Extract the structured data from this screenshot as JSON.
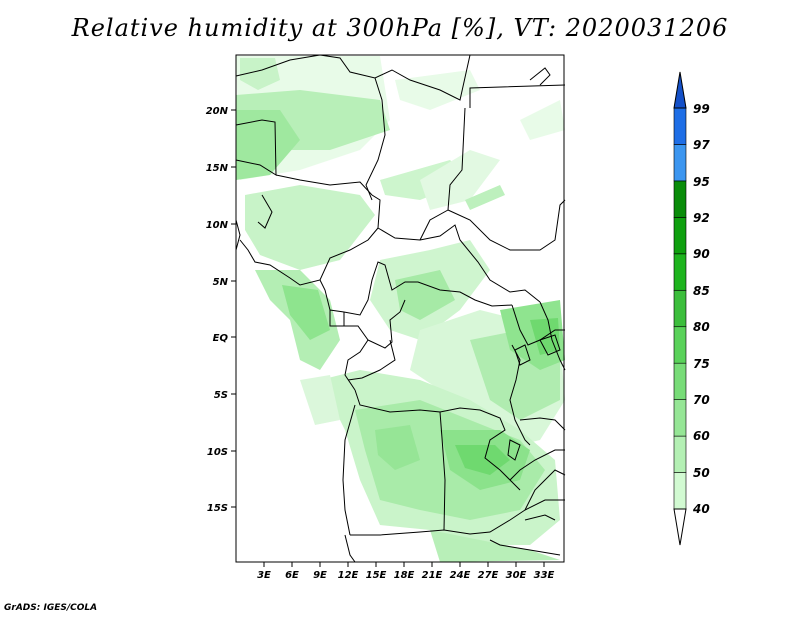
{
  "title": "Relative humidity at 300hPa [%], VT: 2020031206",
  "footer": "GrADS: IGES/COLA",
  "map": {
    "lat_labels": [
      "20N",
      "15N",
      "10N",
      "5N",
      "EQ",
      "5S",
      "10S",
      "15S"
    ],
    "lon_labels": [
      "3E",
      "6E",
      "9E",
      "12E",
      "15E",
      "18E",
      "21E",
      "24E",
      "27E",
      "30E",
      "33E"
    ]
  },
  "colorbar": {
    "levels": [
      "40",
      "50",
      "60",
      "70",
      "75",
      "80",
      "85",
      "90",
      "92",
      "95",
      "97",
      "99"
    ],
    "colors": [
      "#f0fff0",
      "#d2fad2",
      "#b4f0b4",
      "#96e696",
      "#78dc78",
      "#5ad25a",
      "#3cbe3c",
      "#1eb41e",
      "#0fa00f",
      "#0a8c0a",
      "#3c96f0",
      "#1e6ee6",
      "#1450c8"
    ]
  },
  "colors": {
    "land_outline": "#000000",
    "background": "#ffffff"
  }
}
